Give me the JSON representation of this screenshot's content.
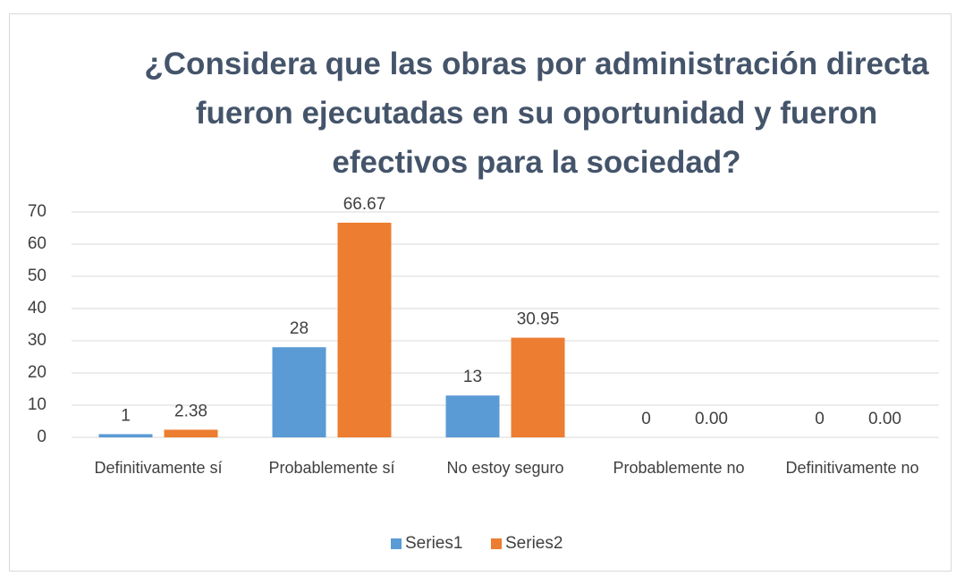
{
  "chart_data": {
    "type": "bar",
    "title": "¿Considera que las obras por administración directa fueron ejecutadas en su oportunidad y fueron efectivos para la sociedad?",
    "categories": [
      "Definitivamente sí",
      "Probablemente sí",
      "No estoy seguro",
      "Probablemente no",
      "Definitivamente no"
    ],
    "series": [
      {
        "name": "Series1",
        "color": "#5b9bd5",
        "values": [
          1,
          28,
          13,
          0,
          0
        ]
      },
      {
        "name": "Series2",
        "color": "#ed7d31",
        "values": [
          2.38,
          66.67,
          30.95,
          0,
          0
        ],
        "value_labels": [
          "2.38",
          "66.67",
          "30.95",
          "0.00",
          "0.00"
        ]
      }
    ],
    "ylim": [
      0,
      70
    ],
    "yticks": [
      0,
      10,
      20,
      30,
      40,
      50,
      60,
      70
    ],
    "grid": true,
    "legend": "bottom"
  }
}
